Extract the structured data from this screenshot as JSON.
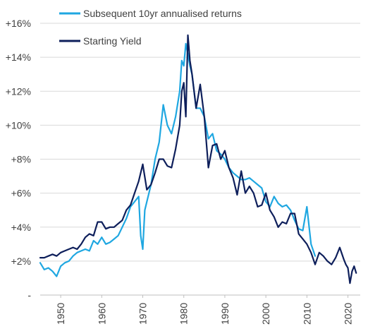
{
  "chart_data": {
    "type": "line",
    "title": "",
    "xlabel": "",
    "ylabel": "",
    "xlim": [
      1945,
      2023
    ],
    "ylim": [
      0,
      16
    ],
    "grid": "horizontal",
    "legend_position": "top-left",
    "x_ticks": [
      {
        "value": 1950,
        "label": "1950"
      },
      {
        "value": 1960,
        "label": "1960"
      },
      {
        "value": 1970,
        "label": "1970"
      },
      {
        "value": 1980,
        "label": "1980"
      },
      {
        "value": 1990,
        "label": "1990"
      },
      {
        "value": 2000,
        "label": "2000"
      },
      {
        "value": 2010,
        "label": "2010"
      },
      {
        "value": 2020,
        "label": "2020"
      }
    ],
    "y_ticks": [
      {
        "value": 0,
        "label": "-"
      },
      {
        "value": 2,
        "label": "+2%"
      },
      {
        "value": 4,
        "label": "+4%"
      },
      {
        "value": 6,
        "label": "+6%"
      },
      {
        "value": 8,
        "label": "+8%"
      },
      {
        "value": 10,
        "label": "+10%"
      },
      {
        "value": 12,
        "label": "+12%"
      },
      {
        "value": 14,
        "label": "+14%"
      },
      {
        "value": 16,
        "label": "+16%"
      }
    ],
    "series": [
      {
        "name": "Subsequent 10yr annualised returns",
        "color": "#1fa7e1",
        "x": [
          1945,
          1946,
          1947,
          1948,
          1949,
          1950,
          1951,
          1952,
          1953,
          1954,
          1955,
          1956,
          1957,
          1958,
          1959,
          1960,
          1961,
          1962,
          1963,
          1964,
          1965,
          1966,
          1967,
          1968,
          1969,
          1969.5,
          1970,
          1970.5,
          1971,
          1972,
          1973,
          1974,
          1975,
          1976,
          1977,
          1978,
          1979,
          1979.5,
          1980,
          1980.5,
          1981,
          1981.5,
          1982,
          1983,
          1984,
          1985,
          1986,
          1987,
          1988,
          1989,
          1990,
          1991,
          1992,
          1993,
          1994,
          1995,
          1996,
          1997,
          1998,
          1999,
          2000,
          2001,
          2002,
          2003,
          2004,
          2005,
          2006,
          2007,
          2008,
          2009,
          2010,
          2011,
          2012
        ],
        "values": [
          1.9,
          1.5,
          1.6,
          1.4,
          1.1,
          1.7,
          1.9,
          2.0,
          2.3,
          2.5,
          2.6,
          2.7,
          2.6,
          3.2,
          3.0,
          3.4,
          3.0,
          3.1,
          3.3,
          3.5,
          4.0,
          4.5,
          5.2,
          5.5,
          5.8,
          3.5,
          2.7,
          5.0,
          5.5,
          6.5,
          8.0,
          9.0,
          11.2,
          10.0,
          9.5,
          10.5,
          12.0,
          13.8,
          13.5,
          14.8,
          14.2,
          13.5,
          13.0,
          11.0,
          11.0,
          10.5,
          9.2,
          9.5,
          8.5,
          8.3,
          8.0,
          7.5,
          7.2,
          7.0,
          6.8,
          6.8,
          6.9,
          6.7,
          6.5,
          6.3,
          5.5,
          5.2,
          5.8,
          5.4,
          5.2,
          5.3,
          5.0,
          4.4,
          3.9,
          3.8,
          5.2,
          3.0,
          2.3
        ]
      },
      {
        "name": "Starting Yield",
        "color": "#0e1f5b",
        "x": [
          1945,
          1946,
          1947,
          1948,
          1949,
          1950,
          1951,
          1952,
          1953,
          1954,
          1955,
          1956,
          1957,
          1958,
          1959,
          1960,
          1961,
          1962,
          1963,
          1964,
          1965,
          1966,
          1967,
          1968,
          1969,
          1970,
          1971,
          1972,
          1973,
          1974,
          1975,
          1976,
          1977,
          1978,
          1979,
          1979.5,
          1980,
          1980.5,
          1981,
          1981.5,
          1982,
          1983,
          1984,
          1985,
          1986,
          1987,
          1988,
          1989,
          1990,
          1991,
          1992,
          1993,
          1994,
          1995,
          1996,
          1997,
          1998,
          1999,
          2000,
          2001,
          2002,
          2003,
          2004,
          2005,
          2006,
          2007,
          2008,
          2009,
          2010,
          2011,
          2012,
          2013,
          2014,
          2015,
          2016,
          2017,
          2018,
          2019,
          2019.5,
          2020,
          2020.5,
          2021,
          2021.5,
          2022
        ],
        "values": [
          2.2,
          2.2,
          2.3,
          2.4,
          2.3,
          2.5,
          2.6,
          2.7,
          2.8,
          2.7,
          3.0,
          3.4,
          3.6,
          3.5,
          4.3,
          4.3,
          3.9,
          4.0,
          4.0,
          4.2,
          4.4,
          5.0,
          5.3,
          6.0,
          6.7,
          7.7,
          6.2,
          6.5,
          7.2,
          8.0,
          8.0,
          7.6,
          7.5,
          8.6,
          10.0,
          12.0,
          12.5,
          10.5,
          15.3,
          13.8,
          13.0,
          11.0,
          12.4,
          10.5,
          7.5,
          8.8,
          8.9,
          8.0,
          8.5,
          7.5,
          6.9,
          5.9,
          7.3,
          6.0,
          6.4,
          6.0,
          5.2,
          5.3,
          6.0,
          5.0,
          4.6,
          4.0,
          4.3,
          4.2,
          4.8,
          4.8,
          3.6,
          3.3,
          3.0,
          2.5,
          1.8,
          2.5,
          2.3,
          2.0,
          1.8,
          2.2,
          2.8,
          2.1,
          1.8,
          1.6,
          0.7,
          1.4,
          1.7,
          1.3
        ]
      }
    ]
  }
}
